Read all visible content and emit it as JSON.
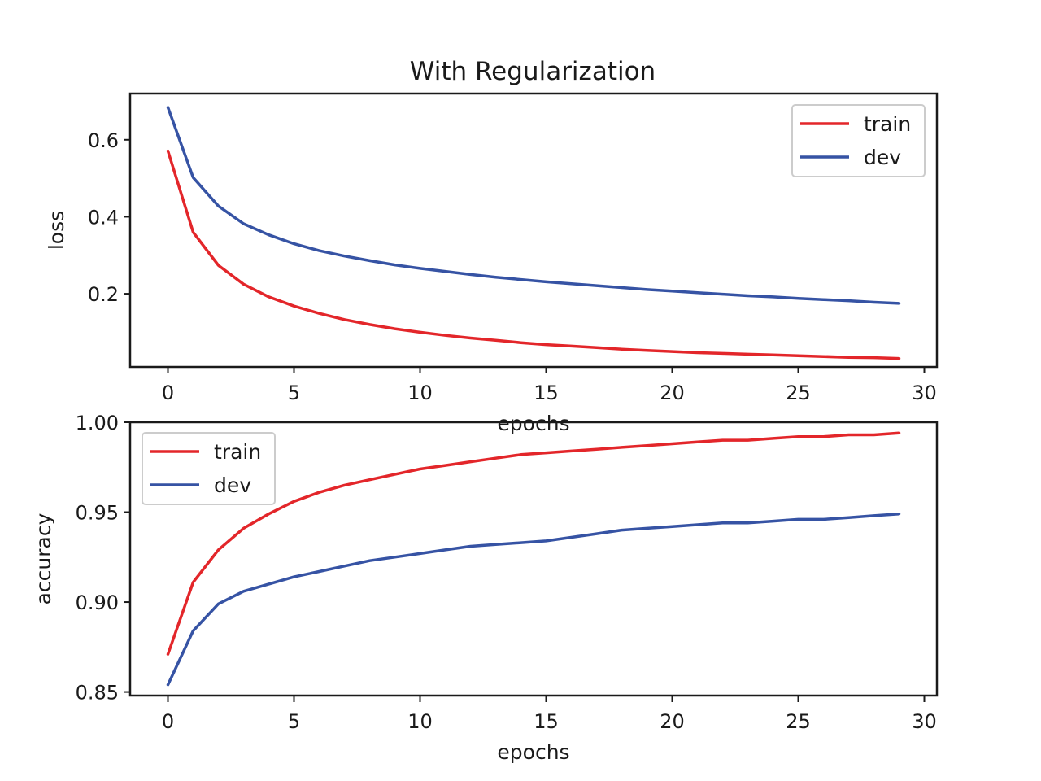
{
  "figure": {
    "title": "With Regularization"
  },
  "chart_data": [
    {
      "type": "line",
      "title": "With Regularization",
      "xlabel": "epochs",
      "ylabel": "loss",
      "xlim": [
        -1.5,
        30.5
      ],
      "ylim": [
        0.01,
        0.72
      ],
      "xticks": [
        0,
        5,
        10,
        15,
        20,
        25,
        30
      ],
      "yticks": [
        0.2,
        0.4,
        0.6
      ],
      "ytick_labels": [
        "0.2",
        "0.4",
        "0.6"
      ],
      "legend": "top-right",
      "x": [
        0,
        1,
        2,
        3,
        4,
        5,
        6,
        7,
        8,
        9,
        10,
        11,
        12,
        13,
        14,
        15,
        16,
        17,
        18,
        19,
        20,
        21,
        22,
        23,
        24,
        25,
        26,
        27,
        28,
        29
      ],
      "series": [
        {
          "name": "train",
          "color": "#e3262a",
          "values": [
            0.571,
            0.36,
            0.274,
            0.225,
            0.192,
            0.168,
            0.149,
            0.133,
            0.12,
            0.109,
            0.1,
            0.092,
            0.085,
            0.079,
            0.073,
            0.068,
            0.064,
            0.06,
            0.056,
            0.053,
            0.05,
            0.047,
            0.045,
            0.043,
            0.041,
            0.039,
            0.037,
            0.035,
            0.034,
            0.032
          ]
        },
        {
          "name": "dev",
          "color": "#3653a4",
          "values": [
            0.684,
            0.502,
            0.428,
            0.382,
            0.353,
            0.33,
            0.312,
            0.298,
            0.286,
            0.275,
            0.266,
            0.258,
            0.25,
            0.243,
            0.237,
            0.231,
            0.226,
            0.221,
            0.216,
            0.211,
            0.207,
            0.203,
            0.199,
            0.195,
            0.192,
            0.188,
            0.185,
            0.182,
            0.178,
            0.175
          ]
        }
      ]
    },
    {
      "type": "line",
      "title": "",
      "xlabel": "epochs",
      "ylabel": "accuracy",
      "xlim": [
        -1.5,
        30.5
      ],
      "ylim": [
        0.848,
        1.0
      ],
      "xticks": [
        0,
        5,
        10,
        15,
        20,
        25,
        30
      ],
      "yticks": [
        0.85,
        0.9,
        0.95,
        1.0
      ],
      "ytick_labels": [
        "0.85",
        "0.90",
        "0.95",
        "1.00"
      ],
      "legend": "top-left",
      "x": [
        0,
        1,
        2,
        3,
        4,
        5,
        6,
        7,
        8,
        9,
        10,
        11,
        12,
        13,
        14,
        15,
        16,
        17,
        18,
        19,
        20,
        21,
        22,
        23,
        24,
        25,
        26,
        27,
        28,
        29
      ],
      "series": [
        {
          "name": "train",
          "color": "#e3262a",
          "values": [
            0.871,
            0.911,
            0.929,
            0.941,
            0.949,
            0.956,
            0.961,
            0.965,
            0.968,
            0.971,
            0.974,
            0.976,
            0.978,
            0.98,
            0.982,
            0.983,
            0.984,
            0.985,
            0.986,
            0.987,
            0.988,
            0.989,
            0.99,
            0.99,
            0.991,
            0.992,
            0.992,
            0.993,
            0.993,
            0.994
          ]
        },
        {
          "name": "dev",
          "color": "#3653a4",
          "values": [
            0.854,
            0.884,
            0.899,
            0.906,
            0.91,
            0.914,
            0.917,
            0.92,
            0.923,
            0.925,
            0.927,
            0.929,
            0.931,
            0.932,
            0.933,
            0.934,
            0.936,
            0.938,
            0.94,
            0.941,
            0.942,
            0.943,
            0.944,
            0.944,
            0.945,
            0.946,
            0.946,
            0.947,
            0.948,
            0.949
          ]
        }
      ]
    }
  ]
}
